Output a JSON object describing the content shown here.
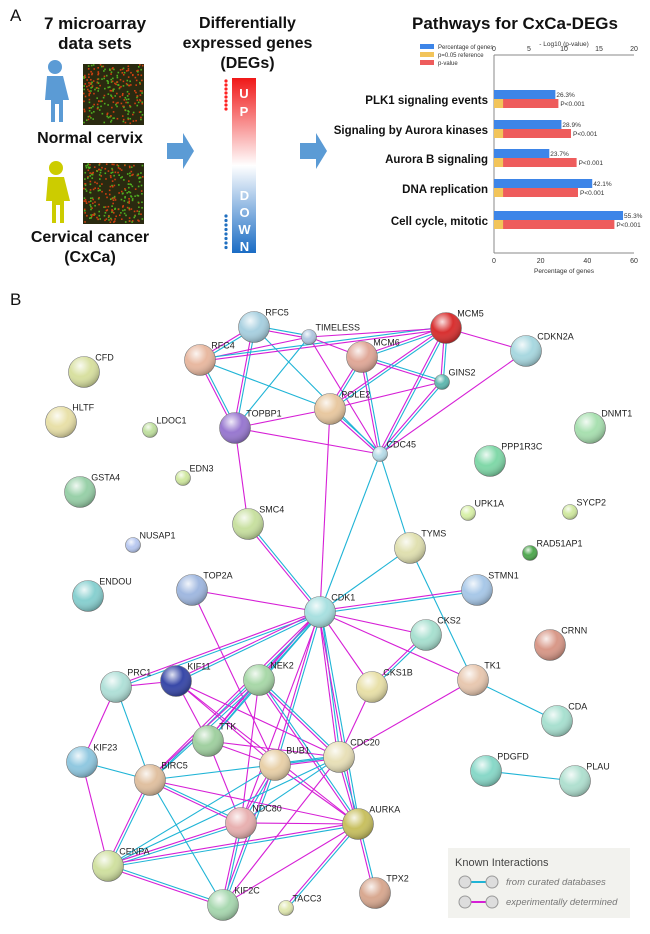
{
  "panel_a": {
    "letter": "A",
    "datasets_title": [
      "7 microarray",
      "data sets"
    ],
    "normal_label": "Normal cervix",
    "cancer_label": [
      "Cervical cancer",
      "(CxCa)"
    ],
    "degs_title": [
      "Differentially",
      "expressed genes",
      "(DEGs)"
    ],
    "up_label": "UP",
    "down_label": "DOWN",
    "pathways_title": "Pathways for CxCa-DEGs",
    "colors": {
      "normal": "#5b9bd5",
      "cancer": "#cccc00",
      "up": "#ff2020",
      "down": "#1f6fc0",
      "arrow": "#5b9bd5"
    }
  },
  "chart_data": {
    "type": "bar",
    "orientation": "horizontal",
    "categories": [
      "PLK1 signaling events",
      "Signaling by Aurora kinases",
      "Aurora B signaling",
      "DNA replication",
      "Cell cycle, mitotic"
    ],
    "series": [
      {
        "name": "Percentage of genes",
        "axis": "bottom",
        "color": "#3d85e8",
        "values": [
          26.3,
          28.9,
          23.7,
          42.1,
          55.3
        ],
        "labels": [
          "26.3%",
          "28.9%",
          "23.7%",
          "42.1%",
          "55.3%"
        ]
      },
      {
        "name": "p=0.05 reference",
        "axis": "top",
        "color": "#f2c45a",
        "values": [
          1.3,
          1.3,
          1.3,
          1.3,
          1.3
        ]
      },
      {
        "name": "p-value",
        "axis": "top",
        "color": "#ee5c5c",
        "values": [
          9.2,
          11.0,
          11.8,
          12.0,
          17.2
        ],
        "labels": [
          "P<0.001",
          "P<0.001",
          "P<0.001",
          "P<0.001",
          "P<0.001"
        ]
      }
    ],
    "xlabel_bottom": "Percentage of genes",
    "xlim_bottom": [
      0,
      60
    ],
    "xticks_bottom": [
      "0",
      "20",
      "40",
      "60"
    ],
    "xlabel_top": "- Log10 (p-value)",
    "xlim_top": [
      0,
      20
    ],
    "xticks_top": [
      "0",
      "5",
      "10",
      "15",
      "20"
    ],
    "legend": "top-left",
    "grid": false
  },
  "panel_b": {
    "letter": "B",
    "legend": {
      "title": "Known Interactions",
      "items": [
        {
          "label": "from curated databases",
          "color": "#1fb4d6"
        },
        {
          "label": "experimentally determined",
          "color": "#d61fd6"
        }
      ]
    },
    "nodes": [
      {
        "id": "RFC5",
        "c": "#a8d0e0"
      },
      {
        "id": "TIMELESS",
        "c": "#b0c8e0",
        "s": 1
      },
      {
        "id": "MCM5",
        "c": "#d83030"
      },
      {
        "id": "RFC4",
        "c": "#e8b8a0"
      },
      {
        "id": "MCM6",
        "c": "#e0a898"
      },
      {
        "id": "CDKN2A",
        "c": "#a8d8e0"
      },
      {
        "id": "GINS2",
        "c": "#60b8b0",
        "s": 1
      },
      {
        "id": "CFD",
        "c": "#d8e0a0"
      },
      {
        "id": "HLTF",
        "c": "#e8e0a8"
      },
      {
        "id": "LDOC1",
        "c": "#c0e0a0",
        "s": 1
      },
      {
        "id": "TOPBP1",
        "c": "#9878d0"
      },
      {
        "id": "POLE2",
        "c": "#e8c8a0"
      },
      {
        "id": "CDC45",
        "c": "#b8dce8",
        "s": 1
      },
      {
        "id": "DNMT1",
        "c": "#a8e0b0"
      },
      {
        "id": "PPP1R3C",
        "c": "#80d8a8"
      },
      {
        "id": "GSTA4",
        "c": "#98d0a8"
      },
      {
        "id": "EDN3",
        "c": "#d0e8a0",
        "s": 1
      },
      {
        "id": "SMC4",
        "c": "#c8e0a0"
      },
      {
        "id": "UPK1A",
        "c": "#d8f0a8",
        "s": 1
      },
      {
        "id": "SYCP2",
        "c": "#d0e8a0",
        "s": 1
      },
      {
        "id": "NUSAP1",
        "c": "#b8c8f0",
        "s": 1
      },
      {
        "id": "TYMS",
        "c": "#e0e0b0"
      },
      {
        "id": "RAD51AP1",
        "c": "#50a850",
        "s": 1
      },
      {
        "id": "ENDOU",
        "c": "#88d0d0"
      },
      {
        "id": "TOP2A",
        "c": "#a0b8e0"
      },
      {
        "id": "STMN1",
        "c": "#a8c8e8"
      },
      {
        "id": "CDK1",
        "c": "#a8e0e0"
      },
      {
        "id": "CKS2",
        "c": "#a8e0d0"
      },
      {
        "id": "CRNN",
        "c": "#d89888"
      },
      {
        "id": "PRC1",
        "c": "#b0e0d8"
      },
      {
        "id": "KIF11",
        "c": "#3848a8"
      },
      {
        "id": "NEK2",
        "c": "#a8d8a8"
      },
      {
        "id": "CKS1B",
        "c": "#e8e0a8"
      },
      {
        "id": "TK1",
        "c": "#e8c8b0"
      },
      {
        "id": "CDA",
        "c": "#a8e0d0"
      },
      {
        "id": "TTK",
        "c": "#a0d0a0"
      },
      {
        "id": "KIF23",
        "c": "#90c8e0"
      },
      {
        "id": "BIRC5",
        "c": "#e0c0a0"
      },
      {
        "id": "BUB1",
        "c": "#e8d0a8"
      },
      {
        "id": "CDC20",
        "c": "#e8e0b8"
      },
      {
        "id": "PDGFD",
        "c": "#88d8c8"
      },
      {
        "id": "PLAU",
        "c": "#b0e0d0"
      },
      {
        "id": "NDC80",
        "c": "#e8b0b0"
      },
      {
        "id": "AURKA",
        "c": "#c8c060"
      },
      {
        "id": "CENPA",
        "c": "#d0e0a0"
      },
      {
        "id": "KIF2C",
        "c": "#a8d8b0"
      },
      {
        "id": "TACC3",
        "c": "#e0e8b0",
        "s": 1
      },
      {
        "id": "TPX2",
        "c": "#d8a890"
      }
    ],
    "edges": [
      [
        "RFC5",
        "RFC4",
        "b"
      ],
      [
        "RFC5",
        "TIMELESS",
        "b"
      ],
      [
        "RFC5",
        "TOPBP1",
        "b"
      ],
      [
        "RFC5",
        "CDC45",
        "d"
      ],
      [
        "RFC4",
        "TIMELESS",
        "e"
      ],
      [
        "RFC4",
        "MCM5",
        "b"
      ],
      [
        "RFC4",
        "TOPBP1",
        "b"
      ],
      [
        "RFC4",
        "POLE2",
        "d"
      ],
      [
        "TIMELESS",
        "MCM5",
        "e"
      ],
      [
        "TIMELESS",
        "TOPBP1",
        "d"
      ],
      [
        "TIMELESS",
        "CDC45",
        "e"
      ],
      [
        "MCM5",
        "MCM6",
        "b"
      ],
      [
        "MCM5",
        "GINS2",
        "b"
      ],
      [
        "MCM5",
        "POLE2",
        "b"
      ],
      [
        "MCM5",
        "CDC45",
        "b"
      ],
      [
        "MCM5",
        "CDKN2A",
        "e"
      ],
      [
        "MCM6",
        "POLE2",
        "b"
      ],
      [
        "MCM6",
        "CDC45",
        "b"
      ],
      [
        "MCM6",
        "GINS2",
        "b"
      ],
      [
        "MCM6",
        "TIMELESS",
        "e"
      ],
      [
        "GINS2",
        "CDC45",
        "b"
      ],
      [
        "GINS2",
        "POLE2",
        "e"
      ],
      [
        "POLE2",
        "TOPBP1",
        "e"
      ],
      [
        "POLE2",
        "CDC45",
        "b"
      ],
      [
        "TOPBP1",
        "CDC45",
        "e"
      ],
      [
        "TOPBP1",
        "SMC4",
        "e"
      ],
      [
        "CDC45",
        "CDKN2A",
        "e"
      ],
      [
        "CDC45",
        "CDK1",
        "d"
      ],
      [
        "CDC45",
        "TYMS",
        "d"
      ],
      [
        "POLE2",
        "CDK1",
        "e"
      ],
      [
        "SMC4",
        "CDK1",
        "b"
      ],
      [
        "TYMS",
        "CDK1",
        "d"
      ],
      [
        "TYMS",
        "TK1",
        "d"
      ],
      [
        "TOP2A",
        "CDK1",
        "e"
      ],
      [
        "TOP2A",
        "BUB1",
        "e"
      ],
      [
        "STMN1",
        "CDK1",
        "b"
      ],
      [
        "CDK1",
        "CKS2",
        "e"
      ],
      [
        "CDK1",
        "TK1",
        "e"
      ],
      [
        "CDK1",
        "CKS1B",
        "e"
      ],
      [
        "CDK1",
        "PRC1",
        "b"
      ],
      [
        "CDK1",
        "KIF11",
        "b"
      ],
      [
        "CDK1",
        "NEK2",
        "b"
      ],
      [
        "CDK1",
        "BUB1",
        "b"
      ],
      [
        "CDK1",
        "CDC20",
        "b"
      ],
      [
        "CDK1",
        "AURKA",
        "b"
      ],
      [
        "CDK1",
        "NDC80",
        "e"
      ],
      [
        "CDK1",
        "TTK",
        "b"
      ],
      [
        "CDK1",
        "BIRC5",
        "b"
      ],
      [
        "CKS2",
        "CKS1B",
        "b"
      ],
      [
        "CKS1B",
        "CDC20",
        "e"
      ],
      [
        "TK1",
        "CDC20",
        "e"
      ],
      [
        "TK1",
        "CDA",
        "d"
      ],
      [
        "PDGFD",
        "PLAU",
        "d"
      ],
      [
        "PRC1",
        "KIF11",
        "e"
      ],
      [
        "PRC1",
        "KIF23",
        "e"
      ],
      [
        "PRC1",
        "BIRC5",
        "d"
      ],
      [
        "KIF11",
        "TTK",
        "e"
      ],
      [
        "KIF11",
        "BUB1",
        "e"
      ],
      [
        "KIF11",
        "AURKA",
        "e"
      ],
      [
        "KIF11",
        "CDC20",
        "e"
      ],
      [
        "NEK2",
        "TTK",
        "b"
      ],
      [
        "NEK2",
        "BIRC5",
        "b"
      ],
      [
        "NEK2",
        "NDC80",
        "e"
      ],
      [
        "NEK2",
        "AURKA",
        "b"
      ],
      [
        "NEK2",
        "CDC20",
        "b"
      ],
      [
        "TTK",
        "BUB1",
        "e"
      ],
      [
        "TTK",
        "CDC20",
        "e"
      ],
      [
        "TTK",
        "NDC80",
        "e"
      ],
      [
        "BUB1",
        "CDC20",
        "b"
      ],
      [
        "BUB1",
        "AURKA",
        "e"
      ],
      [
        "BUB1",
        "NDC80",
        "b"
      ],
      [
        "BUB1",
        "KIF2C",
        "b"
      ],
      [
        "BUB1",
        "CENPA",
        "d"
      ],
      [
        "CDC20",
        "AURKA",
        "b"
      ],
      [
        "CDC20",
        "NDC80",
        "d"
      ],
      [
        "CDC20",
        "KIF2C",
        "e"
      ],
      [
        "CDC20",
        "CENPA",
        "d"
      ],
      [
        "KIF23",
        "BIRC5",
        "d"
      ],
      [
        "KIF23",
        "CENPA",
        "e"
      ],
      [
        "BIRC5",
        "CENPA",
        "b"
      ],
      [
        "BIRC5",
        "NDC80",
        "b"
      ],
      [
        "BIRC5",
        "AURKA",
        "e"
      ],
      [
        "BIRC5",
        "KIF2C",
        "d"
      ],
      [
        "BIRC5",
        "CDC20",
        "d"
      ],
      [
        "NDC80",
        "AURKA",
        "e"
      ],
      [
        "NDC80",
        "KIF2C",
        "b"
      ],
      [
        "NDC80",
        "CENPA",
        "b"
      ],
      [
        "AURKA",
        "CENPA",
        "b"
      ],
      [
        "AURKA",
        "KIF2C",
        "e"
      ],
      [
        "AURKA",
        "TPX2",
        "b"
      ],
      [
        "AURKA",
        "TACC3",
        "b"
      ],
      [
        "CENPA",
        "KIF2C",
        "b"
      ]
    ]
  }
}
